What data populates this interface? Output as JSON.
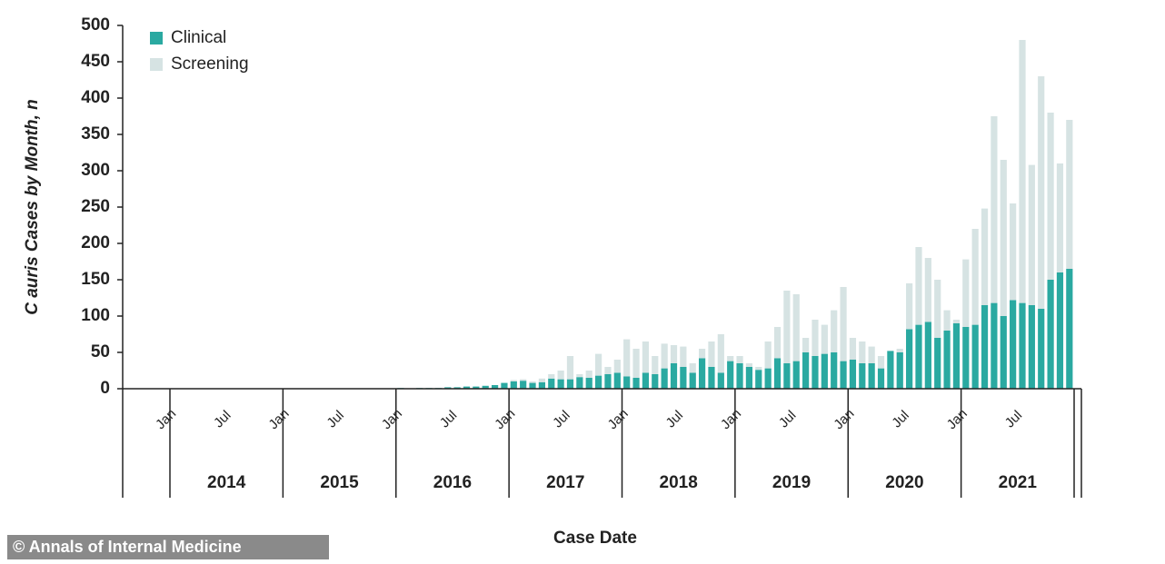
{
  "chart_data": {
    "type": "bar",
    "stacked": true,
    "y_label": "C auris Cases by Month, n",
    "x_label": "Case Date",
    "source": "© Annals of Internal Medicine",
    "categories": [
      "Jan",
      null,
      null,
      null,
      null,
      null,
      "Jul",
      null,
      null,
      null,
      null,
      null,
      "Jan",
      null,
      null,
      null,
      null,
      null,
      "Jul",
      null,
      null,
      null,
      null,
      null,
      "Jan",
      null,
      null,
      null,
      null,
      null,
      "Jul",
      null,
      null,
      null,
      null,
      null,
      "Jan",
      null,
      null,
      null,
      null,
      null,
      "Jul",
      null,
      null,
      null,
      null,
      null,
      "Jan",
      null,
      null,
      null,
      null,
      null,
      "Jul",
      null,
      null,
      null,
      null,
      null,
      "Jan",
      null,
      null,
      null,
      null,
      null,
      "Jul",
      null,
      null,
      null,
      null,
      null,
      "Jan",
      null,
      null,
      null,
      null,
      null,
      "Jul",
      null,
      null,
      null,
      null,
      null,
      "Jan",
      null,
      null,
      null,
      null,
      null,
      "Jul",
      null,
      null,
      null,
      null,
      null
    ],
    "year_labels": [
      "2014",
      "2015",
      "2016",
      "2017",
      "2018",
      "2019",
      "2020",
      "2021"
    ],
    "series": [
      {
        "name": "Clinical",
        "color": "#2aa9a1",
        "values": [
          0,
          0,
          0,
          0,
          0,
          0,
          0,
          0,
          0,
          0,
          0,
          0,
          0,
          0,
          0,
          0,
          0,
          0,
          0,
          0,
          0,
          0,
          0,
          0,
          1,
          0,
          1,
          1,
          1,
          2,
          2,
          3,
          3,
          4,
          5,
          8,
          10,
          11,
          8,
          9,
          14,
          13,
          13,
          16,
          15,
          18,
          20,
          22,
          17,
          15,
          22,
          20,
          28,
          35,
          30,
          22,
          42,
          30,
          22,
          38,
          35,
          30,
          26,
          28,
          42,
          35,
          38,
          50,
          45,
          48,
          50,
          38,
          40,
          35,
          35,
          28,
          52,
          50,
          82,
          88,
          92,
          70,
          80,
          90,
          85,
          88,
          115,
          118,
          100,
          122,
          118,
          115,
          110,
          150,
          160,
          165
        ]
      },
      {
        "name": "Screening",
        "color": "#d6e3e3",
        "values": [
          0,
          0,
          0,
          0,
          0,
          0,
          0,
          0,
          0,
          0,
          0,
          0,
          0,
          0,
          0,
          0,
          0,
          0,
          0,
          0,
          0,
          0,
          0,
          0,
          0,
          0,
          0,
          0,
          0,
          0,
          0,
          0,
          0,
          0,
          0,
          0,
          2,
          2,
          2,
          5,
          6,
          12,
          32,
          4,
          10,
          30,
          10,
          18,
          51,
          40,
          43,
          25,
          34,
          25,
          28,
          13,
          13,
          35,
          53,
          7,
          10,
          5,
          4,
          37,
          43,
          100,
          92,
          20,
          50,
          40,
          58,
          102,
          30,
          30,
          23,
          17,
          0,
          5,
          63,
          107,
          88,
          80,
          28,
          5,
          93,
          132,
          133,
          257,
          215,
          133,
          362,
          193,
          320,
          230,
          150,
          205
        ]
      }
    ],
    "ylim": [
      0,
      500
    ],
    "yticks": [
      0,
      50,
      100,
      150,
      200,
      250,
      300,
      350,
      400,
      450,
      500
    ],
    "legend": "top-left"
  }
}
